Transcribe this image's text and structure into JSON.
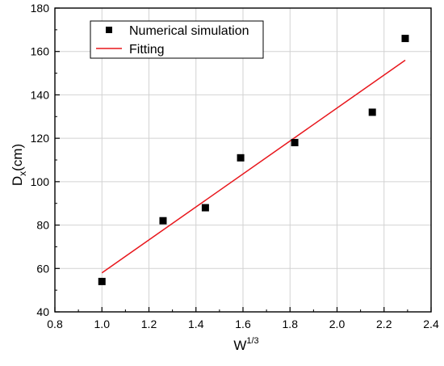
{
  "chart_data": {
    "type": "scatter",
    "xlabel": {
      "base": "W",
      "sup": "1/3"
    },
    "ylabel": {
      "base": "D",
      "sub": "x",
      "rest": "(cm)"
    },
    "xlim": [
      0.8,
      2.4
    ],
    "ylim": [
      40,
      180
    ],
    "xticks": [
      0.8,
      1.0,
      1.2,
      1.4,
      1.6,
      1.8,
      2.0,
      2.2,
      2.4
    ],
    "yticks": [
      40,
      60,
      80,
      100,
      120,
      140,
      160,
      180
    ],
    "xtick_labels": [
      "0.8",
      "1.0",
      "1.2",
      "1.4",
      "1.6",
      "1.8",
      "2.0",
      "2.2",
      "2.4"
    ],
    "ytick_labels": [
      "40",
      "60",
      "80",
      "100",
      "120",
      "140",
      "160",
      "180"
    ],
    "grid": true,
    "legend_position": "top-left",
    "series": [
      {
        "name": "Numerical simulation",
        "kind": "scatter",
        "marker": "square",
        "color": "#000000",
        "x": [
          1.0,
          1.26,
          1.44,
          1.59,
          1.82,
          2.15,
          2.29
        ],
        "y": [
          54,
          82,
          88,
          111,
          118,
          132,
          166
        ]
      },
      {
        "name": "Fitting",
        "kind": "line",
        "color": "#e8161c",
        "x": [
          1.0,
          2.29
        ],
        "y": [
          58,
          156
        ]
      }
    ]
  }
}
